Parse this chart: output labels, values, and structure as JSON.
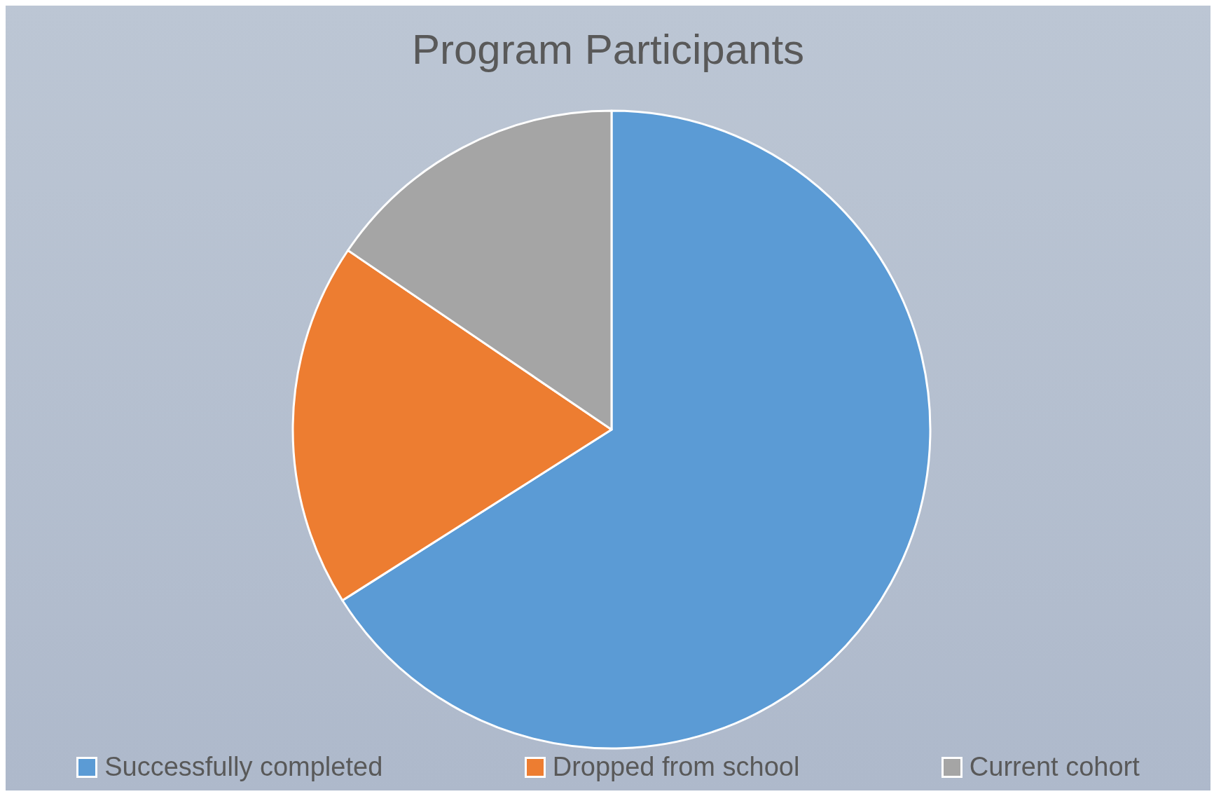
{
  "chart_data": {
    "type": "pie",
    "title": "Program Participants",
    "categories": [
      "Successfully completed",
      "Dropped from school",
      "Current cohort"
    ],
    "values": [
      66,
      18.5,
      15.5
    ],
    "colors": [
      "#5b9bd5",
      "#ed7d31",
      "#a5a5a5"
    ],
    "legend": "bottom"
  }
}
